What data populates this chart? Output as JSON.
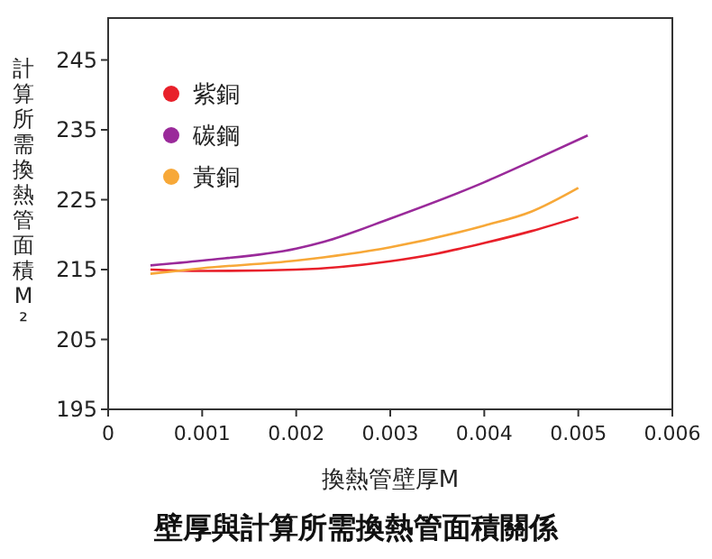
{
  "chart_data": {
    "type": "line",
    "title": "壁厚與計算所需換熱管面積關係",
    "xlabel": "換熱管壁厚M",
    "ylabel": "計算所需換熱管面積M²",
    "xlim": [
      0,
      0.006
    ],
    "xticks": [
      0,
      0.001,
      0.002,
      0.003,
      0.004,
      0.005,
      0.006
    ],
    "ylim": [
      195,
      251
    ],
    "yticks": [
      195,
      205,
      215,
      225,
      235,
      245
    ],
    "grid": false,
    "legend": "top left",
    "marker": "none",
    "line_style": "solid",
    "series": [
      {
        "name": "紫銅",
        "color": "#e8202a",
        "x": [
          0.00045,
          0.001,
          0.002,
          0.003,
          0.0035,
          0.004,
          0.0045,
          0.005
        ],
        "values": [
          215,
          214.8,
          215,
          216.2,
          217.3,
          218.8,
          220.5,
          222.5
        ]
      },
      {
        "name": "碳鋼",
        "color": "#9a2a9a",
        "x": [
          0.00045,
          0.001,
          0.002,
          0.0023,
          0.003,
          0.004,
          0.0045,
          0.0051
        ],
        "values": [
          215.6,
          216.3,
          218,
          219,
          222.3,
          227.5,
          230.5,
          234.2
        ]
      },
      {
        "name": "黃銅",
        "color": "#f7a838",
        "x": [
          0.00045,
          0.001,
          0.002,
          0.003,
          0.004,
          0.0045,
          0.005
        ],
        "values": [
          214.4,
          215.2,
          216.3,
          218.2,
          221.3,
          223.3,
          226.7
        ]
      }
    ]
  }
}
